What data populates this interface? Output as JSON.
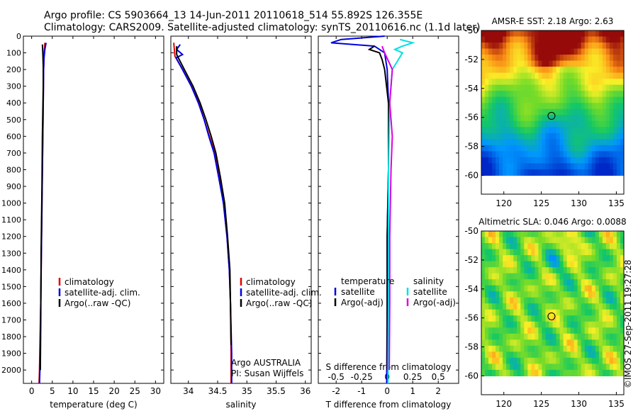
{
  "header": {
    "line1": "Argo profile: CS 5903664_13 14-Jun-2011 20110618_514 55.892S 126.355E",
    "line2": "Climatology: CARS2009. Satellite-adjusted climatology: synTS_20110616.nc (1.1d later)"
  },
  "credit": "©IMOS 27-Sep-2011 19:27:28",
  "chart_data": [
    {
      "id": "temperature",
      "type": "line",
      "xlabel": "temperature (deg C)",
      "xlim": [
        -2,
        32
      ],
      "ylim": [
        0,
        2080
      ],
      "xticks": [
        0,
        5,
        10,
        15,
        20,
        25,
        30
      ],
      "yticks": [
        0,
        100,
        200,
        300,
        400,
        500,
        600,
        700,
        800,
        900,
        1000,
        1100,
        1200,
        1300,
        1400,
        1500,
        1600,
        1700,
        1800,
        1900,
        2000
      ],
      "legend": {
        "position": "center-right",
        "entries": [
          "climatology",
          "satellite-adj. clim.",
          "Argo(..raw -QC)"
        ],
        "colors": [
          "#e00000",
          "#0000e0",
          "#000000"
        ]
      },
      "series": [
        {
          "name": "climatology",
          "color": "#e00000",
          "points": [
            [
              3.2,
              40
            ],
            [
              3.1,
              80
            ],
            [
              3.0,
              120
            ],
            [
              2.9,
              200
            ],
            [
              2.8,
              400
            ],
            [
              2.6,
              800
            ],
            [
              2.4,
              1200
            ],
            [
              2.2,
              1600
            ],
            [
              1.9,
              2000
            ],
            [
              1.8,
              2080
            ]
          ]
        },
        {
          "name": "satellite-adj. clim.",
          "color": "#0000e0",
          "points": [
            [
              3.5,
              40
            ],
            [
              3.2,
              80
            ],
            [
              3.0,
              130
            ],
            [
              2.9,
              200
            ],
            [
              2.8,
              400
            ],
            [
              2.6,
              800
            ],
            [
              2.4,
              1200
            ],
            [
              2.2,
              1600
            ],
            [
              2.0,
              2000
            ],
            [
              1.9,
              2080
            ]
          ]
        },
        {
          "name": "Argo(..raw -QC)",
          "color": "#000000",
          "points": [
            [
              2.6,
              50
            ],
            [
              2.7,
              100
            ],
            [
              2.8,
              180
            ],
            [
              2.8,
              300
            ],
            [
              2.6,
              600
            ],
            [
              2.5,
              900
            ],
            [
              2.3,
              1300
            ],
            [
              2.2,
              1700
            ],
            [
              2.1,
              2000
            ]
          ]
        }
      ]
    },
    {
      "id": "salinity",
      "type": "line",
      "xlabel": "salinity",
      "xlim": [
        33.7,
        36.1
      ],
      "ylim": [
        0,
        2080
      ],
      "xticks": [
        34,
        34.5,
        35,
        35.5,
        36
      ],
      "legend": {
        "position": "center-right",
        "entries": [
          "climatology",
          "satellite-adj. clim.",
          "Argo(..raw -QC)"
        ],
        "colors": [
          "#e00000",
          "#0000e0",
          "#000000"
        ]
      },
      "note": [
        "Argo AUSTRALIA",
        "PI: Susan Wijffels"
      ],
      "series": [
        {
          "name": "climatology",
          "color": "#e00000",
          "points": [
            [
              33.75,
              40
            ],
            [
              33.77,
              120
            ],
            [
              33.9,
              200
            ],
            [
              34.05,
              300
            ],
            [
              34.18,
              400
            ],
            [
              34.27,
              500
            ],
            [
              34.36,
              600
            ],
            [
              34.45,
              700
            ],
            [
              34.53,
              850
            ],
            [
              34.6,
              1000
            ],
            [
              34.66,
              1200
            ],
            [
              34.7,
              1400
            ],
            [
              34.72,
              1600
            ],
            [
              34.73,
              1900
            ],
            [
              34.73,
              2080
            ]
          ]
        },
        {
          "name": "satellite-adj. clim.",
          "color": "#0000e0",
          "points": [
            [
              33.86,
              50
            ],
            [
              33.8,
              80
            ],
            [
              33.9,
              110
            ],
            [
              33.79,
              130
            ],
            [
              33.9,
              200
            ],
            [
              34.05,
              300
            ],
            [
              34.17,
              400
            ],
            [
              34.27,
              500
            ],
            [
              34.35,
              600
            ],
            [
              34.44,
              700
            ],
            [
              34.52,
              850
            ],
            [
              34.6,
              1000
            ],
            [
              34.66,
              1200
            ],
            [
              34.7,
              1400
            ],
            [
              34.72,
              1600
            ],
            [
              34.74,
              1900
            ],
            [
              34.74,
              2080
            ]
          ]
        },
        {
          "name": "Argo(..raw -QC)",
          "color": "#000000",
          "points": [
            [
              33.8,
              60
            ],
            [
              33.8,
              110
            ],
            [
              33.93,
              200
            ],
            [
              34.08,
              300
            ],
            [
              34.2,
              400
            ],
            [
              34.3,
              500
            ],
            [
              34.39,
              600
            ],
            [
              34.47,
              700
            ],
            [
              34.55,
              850
            ],
            [
              34.62,
              1000
            ],
            [
              34.67,
              1200
            ],
            [
              34.71,
              1400
            ],
            [
              34.72,
              1600
            ],
            [
              34.73,
              1850
            ]
          ]
        }
      ]
    },
    {
      "id": "difference",
      "type": "line",
      "xlabel": "T difference from climatology",
      "xlabel_top": "S difference from climatology",
      "xlim": [
        -2.7,
        2.8
      ],
      "ylim": [
        0,
        2080
      ],
      "xticks": [
        -2,
        -1,
        0,
        1,
        2
      ],
      "xticks_top_labels": [
        "-0.5",
        "-0.25",
        "0",
        "0.25",
        "0.5"
      ],
      "xticks_top_positions": [
        -2,
        -1,
        0,
        1,
        2
      ],
      "legend": {
        "temperature_title": "temperature",
        "salinity_title": "salinity",
        "temperature_entries": [
          "satellite",
          "Argo(-adj)"
        ],
        "temperature_colors": [
          "#0000e0",
          "#000000"
        ],
        "salinity_entries": [
          "satellite",
          "Argo(-adj)"
        ],
        "salinity_colors": [
          "#00e0e0",
          "#e000e0"
        ]
      },
      "series": [
        {
          "name": "temperature satellite",
          "color": "#0000e0",
          "points": [
            [
              -0.1,
              0
            ],
            [
              -1.8,
              20
            ],
            [
              -2.2,
              40
            ],
            [
              -0.5,
              60
            ],
            [
              -0.1,
              100
            ],
            [
              0.0,
              200
            ],
            [
              0.05,
              400
            ],
            [
              0.05,
              800
            ],
            [
              0.0,
              1200
            ],
            [
              0.0,
              1600
            ],
            [
              -0.02,
              2080
            ]
          ]
        },
        {
          "name": "temperature Argo(-adj)",
          "color": "#000000",
          "points": [
            [
              -0.5,
              60
            ],
            [
              -0.7,
              80
            ],
            [
              -0.3,
              100
            ],
            [
              -0.2,
              140
            ],
            [
              -0.1,
              200
            ],
            [
              0.05,
              400
            ],
            [
              0.05,
              800
            ],
            [
              0.0,
              1200
            ],
            [
              0.0,
              1600
            ],
            [
              0.0,
              2000
            ]
          ]
        },
        {
          "name": "salinity satellite",
          "color": "#00e0e0",
          "points": [
            [
              0.5,
              20
            ],
            [
              1.0,
              40
            ],
            [
              0.6,
              60
            ],
            [
              0.3,
              80
            ],
            [
              0.6,
              100
            ],
            [
              0.2,
              200
            ],
            [
              0.1,
              400
            ],
            [
              0.05,
              800
            ],
            [
              0.05,
              1200
            ],
            [
              0.05,
              1600
            ],
            [
              0.03,
              2080
            ]
          ]
        },
        {
          "name": "salinity Argo(-adj)",
          "color": "#e000e0",
          "points": [
            [
              -0.2,
              60
            ],
            [
              -0.1,
              100
            ],
            [
              0.2,
              200
            ],
            [
              0.1,
              400
            ],
            [
              0.2,
              600
            ],
            [
              0.15,
              800
            ],
            [
              0.1,
              1200
            ],
            [
              0.1,
              1600
            ],
            [
              0.08,
              2000
            ]
          ]
        }
      ]
    },
    {
      "id": "sst_map",
      "type": "heatmap",
      "title": "AMSR-E SST: 2.18 Argo: 2.63",
      "xlim": [
        117,
        136
      ],
      "ylim": [
        -61.3,
        -50
      ],
      "xticks": [
        120,
        125,
        130,
        135
      ],
      "yticks": [
        -50,
        -52,
        -54,
        -56,
        -58,
        -60
      ],
      "data_extent_lat": [
        -60,
        -50
      ],
      "marker": {
        "lon": 126.355,
        "lat": -55.892
      }
    },
    {
      "id": "sla_map",
      "type": "heatmap",
      "title": "Altimetric SLA: 0.046 Argo: 0.0088",
      "xlim": [
        117,
        136
      ],
      "ylim": [
        -61.3,
        -50
      ],
      "xticks": [
        120,
        125,
        130,
        135
      ],
      "yticks": [
        -50,
        -52,
        -54,
        -56,
        -58,
        -60
      ],
      "data_extent_lat": [
        -60,
        -50
      ],
      "marker": {
        "lon": 126.355,
        "lat": -55.892
      }
    }
  ]
}
